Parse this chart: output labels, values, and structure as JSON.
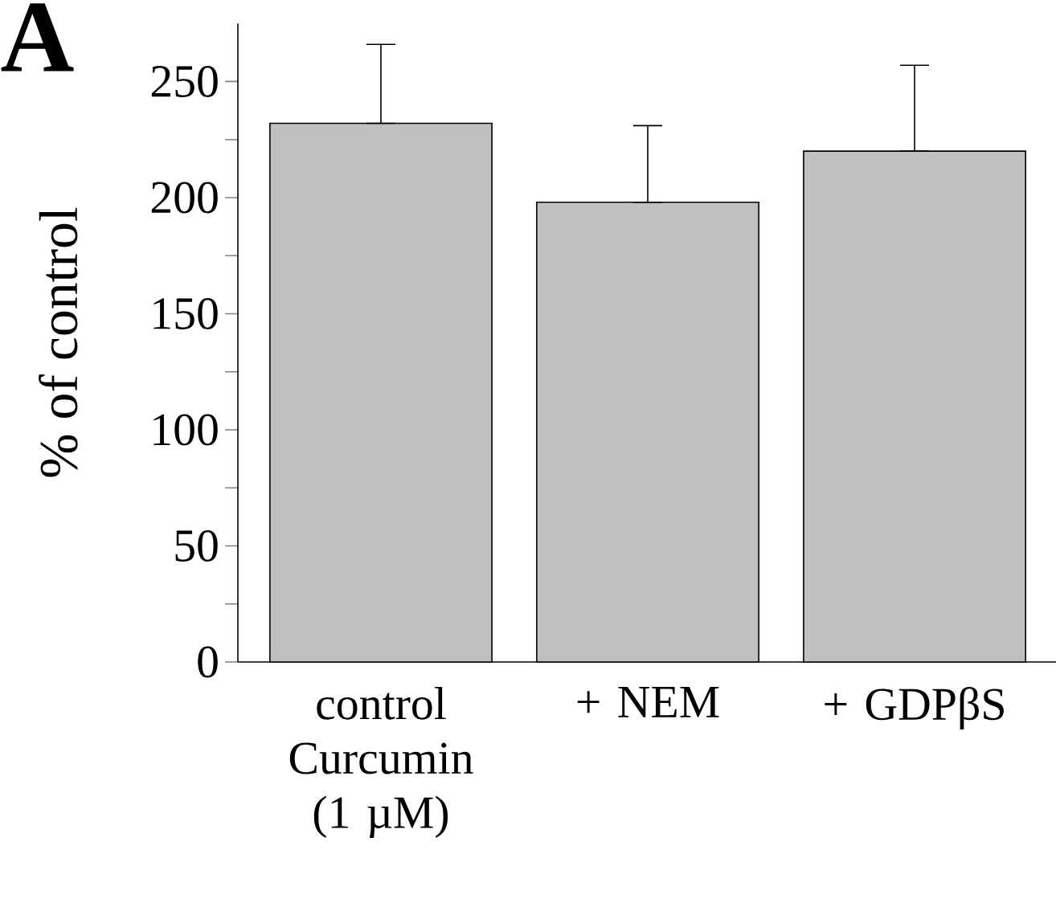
{
  "chart_data": {
    "type": "bar",
    "ylabel": "% of control",
    "annotations": [
      "A"
    ],
    "categories": [
      "control Curcumin (1 µM)",
      "+ NEM",
      "+ GDPβS"
    ],
    "values": [
      232,
      198,
      220
    ],
    "errors": [
      [
        232,
        266
      ],
      [
        198,
        231
      ],
      [
        220,
        257
      ]
    ],
    "color": "#c0c0c0",
    "ylim": [
      0,
      275
    ],
    "yticks": [
      0,
      {
        "value": 25,
        "label": null
      },
      50,
      {
        "value": 75,
        "label": null
      },
      100,
      {
        "value": 125,
        "label": null
      },
      150,
      {
        "value": 175,
        "label": null
      },
      200,
      {
        "value": 225,
        "label": null
      },
      250
    ],
    "grid": false
  }
}
